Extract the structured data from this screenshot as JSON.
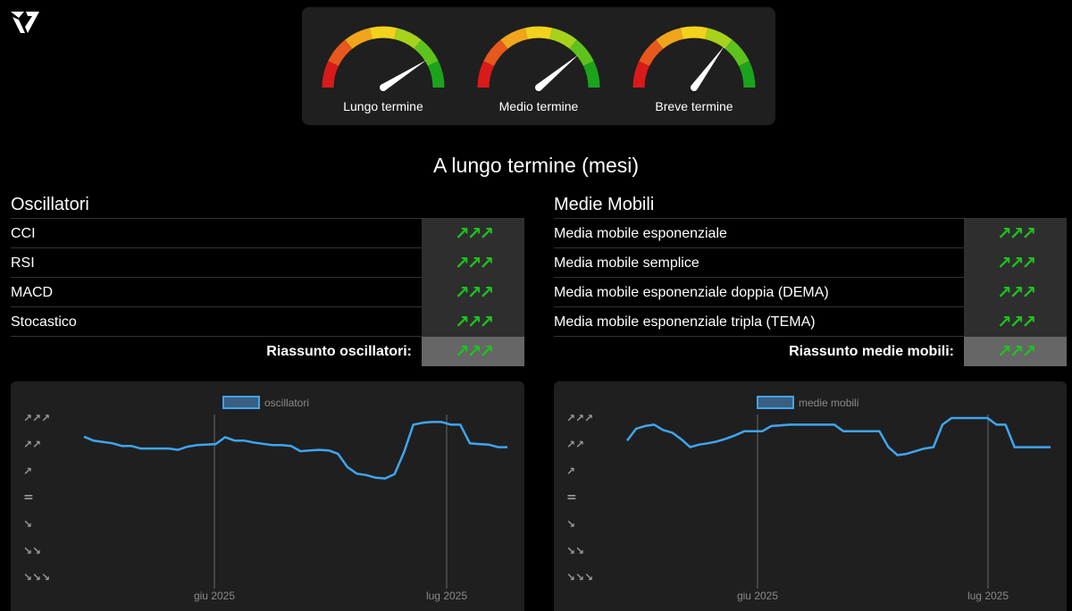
{
  "gauges": [
    {
      "label": "Lungo termine",
      "value": 0.82
    },
    {
      "label": "Medio termine",
      "value": 0.78
    },
    {
      "label": "Breve termine",
      "value": 0.7
    }
  ],
  "section_title": "A lungo termine (mesi)",
  "oscillators": {
    "title": "Oscillatori",
    "rows": [
      {
        "name": "CCI",
        "signal": "↗↗↗"
      },
      {
        "name": "RSI",
        "signal": "↗↗↗"
      },
      {
        "name": "MACD",
        "signal": "↗↗↗"
      },
      {
        "name": "Stocastico",
        "signal": "↗↗↗"
      }
    ],
    "summary_label": "Riassunto oscillatori:",
    "summary_signal": "↗↗↗"
  },
  "moving_averages": {
    "title": "Medie Mobili",
    "rows": [
      {
        "name": "Media mobile esponenziale",
        "signal": "↗↗↗"
      },
      {
        "name": "Media mobile semplice",
        "signal": "↗↗↗"
      },
      {
        "name": "Media mobile esponenziale doppia (DEMA)",
        "signal": "↗↗↗"
      },
      {
        "name": "Media mobile esponenziale tripla (TEMA)",
        "signal": "↗↗↗"
      }
    ],
    "summary_label": "Riassunto medie mobili:",
    "summary_signal": "↗↗↗"
  },
  "chart_data": [
    {
      "type": "line",
      "legend": "oscillatori",
      "y_tick_labels": [
        "↗↗↗",
        "↗↗",
        "↗",
        "=",
        "↘",
        "↘↘",
        "↘↘↘"
      ],
      "ylim": [
        -3,
        3
      ],
      "x_tick_labels": [
        "giu 2025",
        "lug 2025"
      ],
      "line_color": "#3ea6f0",
      "values": [
        2.3,
        2.15,
        2.1,
        2.05,
        1.95,
        1.95,
        1.85,
        1.85,
        1.85,
        1.85,
        1.8,
        1.92,
        1.98,
        2.0,
        2.02,
        2.28,
        2.15,
        2.15,
        2.08,
        2.03,
        1.98,
        1.98,
        1.95,
        1.75,
        1.78,
        1.8,
        1.78,
        1.65,
        1.15,
        0.9,
        0.85,
        0.75,
        0.72,
        0.88,
        1.7,
        2.75,
        2.82,
        2.85,
        2.85,
        2.75,
        2.75,
        2.05,
        2.02,
        2.0,
        1.9,
        1.9
      ]
    },
    {
      "type": "line",
      "legend": "medie mobili",
      "y_tick_labels": [
        "↗↗↗",
        "↗↗",
        "↗",
        "=",
        "↘",
        "↘↘",
        "↘↘↘"
      ],
      "ylim": [
        -3,
        3
      ],
      "x_tick_labels": [
        "giu 2025",
        "lug 2025"
      ],
      "line_color": "#3ea6f0",
      "values": [
        2.15,
        2.6,
        2.7,
        2.75,
        2.55,
        2.45,
        2.2,
        1.9,
        2.0,
        2.05,
        2.12,
        2.22,
        2.35,
        2.5,
        2.5,
        2.5,
        2.7,
        2.72,
        2.75,
        2.75,
        2.75,
        2.75,
        2.75,
        2.75,
        2.5,
        2.5,
        2.5,
        2.5,
        2.5,
        1.9,
        1.6,
        1.65,
        1.75,
        1.85,
        1.9,
        2.75,
        3.0,
        3.0,
        3.0,
        3.0,
        3.0,
        2.75,
        2.75,
        1.9,
        1.9,
        1.9,
        1.9,
        1.9
      ]
    }
  ]
}
